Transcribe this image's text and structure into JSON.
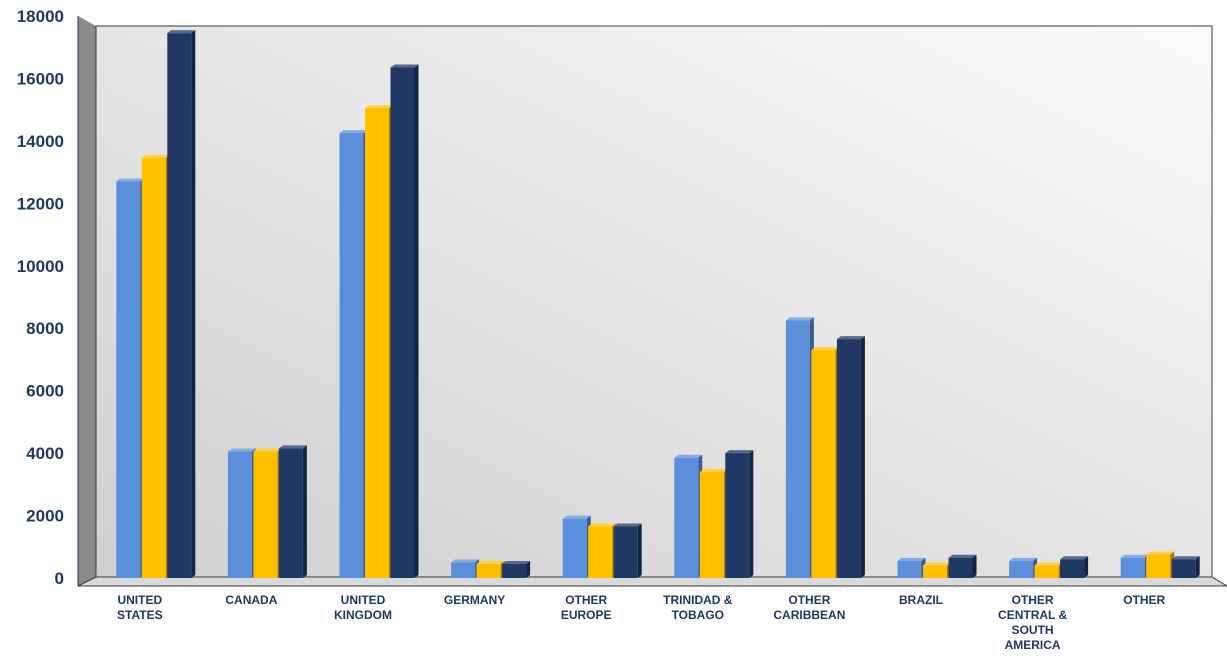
{
  "chart_data": {
    "type": "bar",
    "title": "",
    "xlabel": "",
    "ylabel": "",
    "ylim": [
      0,
      18000
    ],
    "yticks": [
      0,
      2000,
      4000,
      6000,
      8000,
      10000,
      12000,
      14000,
      16000,
      18000
    ],
    "grid": false,
    "legend": "none",
    "categories": [
      [
        "UNITED",
        "STATES"
      ],
      [
        "CANADA"
      ],
      [
        "UNITED",
        "KINGDOM"
      ],
      [
        "GERMANY"
      ],
      [
        "OTHER",
        "EUROPE"
      ],
      [
        "TRINIDAD &",
        "TOBAGO"
      ],
      [
        "OTHER",
        "CARIBBEAN"
      ],
      [
        "BRAZIL"
      ],
      [
        "OTHER",
        "CENTRAL &",
        "SOUTH",
        "AMERICA"
      ],
      [
        "OTHER"
      ]
    ],
    "series": [
      {
        "color": "#5b8fd9",
        "values": [
          12700,
          4050,
          14250,
          500,
          1900,
          3850,
          8250,
          550,
          550,
          650
        ]
      },
      {
        "color": "#ffc000",
        "values": [
          13450,
          4050,
          15050,
          450,
          1650,
          3400,
          7300,
          400,
          400,
          750
        ]
      },
      {
        "color": "#1f3864",
        "values": [
          17450,
          4150,
          16350,
          450,
          1650,
          4000,
          7650,
          650,
          600,
          600
        ]
      }
    ]
  }
}
